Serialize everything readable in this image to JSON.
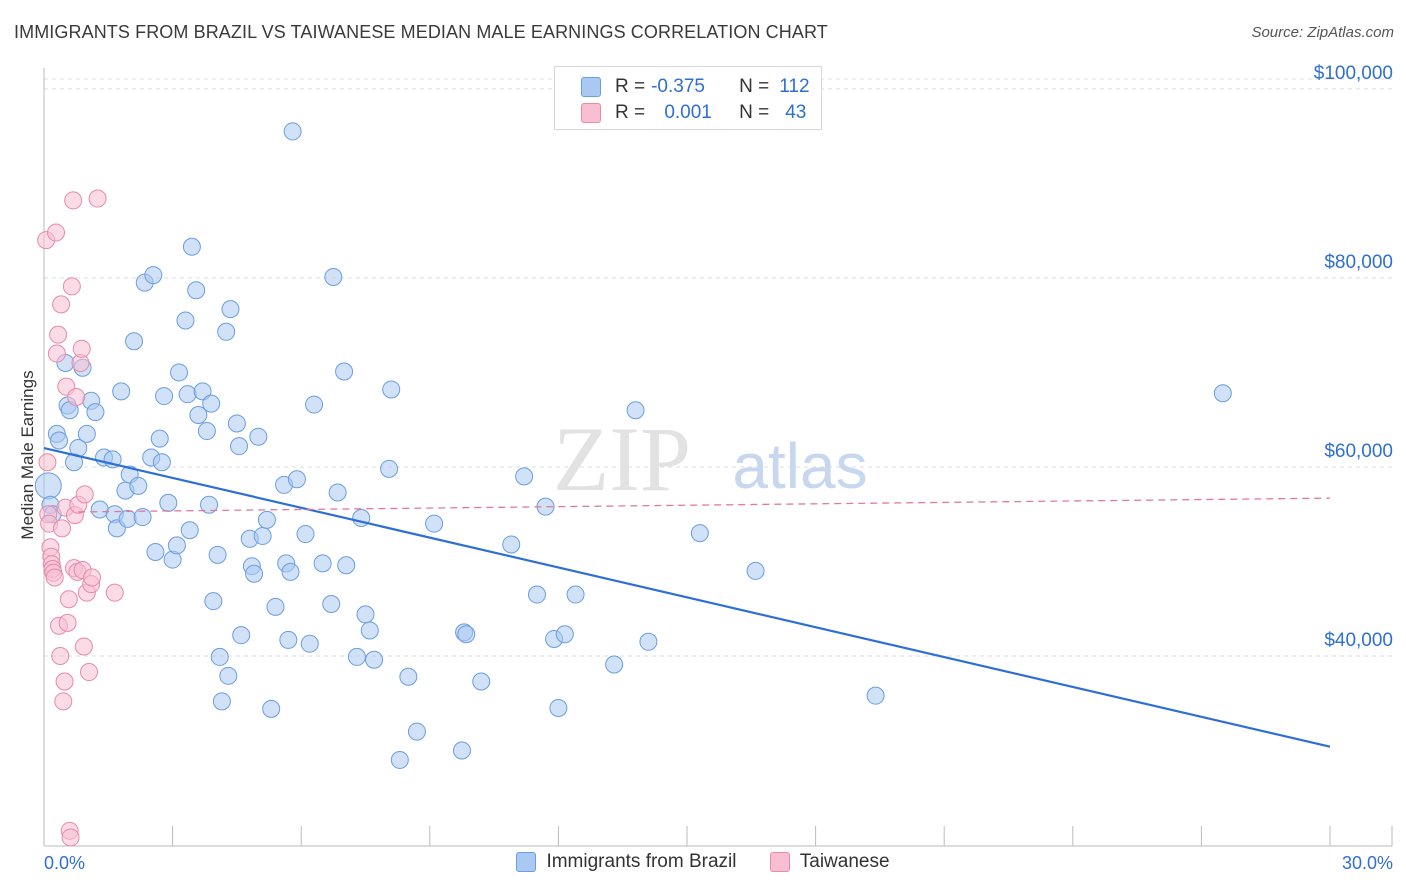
{
  "header": {
    "title": "IMMIGRANTS FROM BRAZIL VS TAIWANESE MEDIAN MALE EARNINGS CORRELATION CHART",
    "source": "Source: ZipAtlas.com"
  },
  "watermark": {
    "zip": "ZIP",
    "atlas": "atlas"
  },
  "stats": [
    {
      "r_label": "R =",
      "r_value": "-0.375",
      "n_label": "N =",
      "n_value": "112",
      "color": "#a9c9f2",
      "border": "#6a9ee0"
    },
    {
      "r_label": "R =",
      "r_value": "0.001",
      "n_label": "N =",
      "n_value": "43",
      "color": "#f7bfd1",
      "border": "#e88aa8"
    }
  ],
  "legend": [
    {
      "label": "Immigrants from Brazil",
      "color": "#a9c9f2",
      "border": "#6a9ee0"
    },
    {
      "label": "Taiwanese",
      "color": "#f7bfd1",
      "border": "#e88aa8"
    }
  ],
  "chart_data": {
    "type": "scatter",
    "title": "IMMIGRANTS FROM BRAZIL VS TAIWANESE MEDIAN MALE EARNINGS CORRELATION CHART",
    "xlabel": "",
    "ylabel": "Median Male Earnings",
    "xlim": [
      0,
      30
    ],
    "ylim": [
      20000,
      102000
    ],
    "x_tick_labels": [
      "0.0%",
      "30.0%"
    ],
    "y_ticks": [
      40000,
      60000,
      80000,
      100000
    ],
    "y_tick_labels": [
      "$40,000",
      "$60,000",
      "$80,000",
      "$100,000"
    ],
    "grid": true,
    "series": [
      {
        "name": "Immigrants from Brazil",
        "color": "#a9c9f2",
        "stroke": "#6a9ee0",
        "trend": {
          "x": [
            0,
            30
          ],
          "y": [
            62000,
            30400
          ],
          "color": "#2e6fd6",
          "dashed": false
        },
        "points": [
          [
            0.1,
            58000
          ],
          [
            0.15,
            56000
          ],
          [
            0.2,
            55000
          ],
          [
            0.3,
            63500
          ],
          [
            0.35,
            62800
          ],
          [
            0.5,
            71000
          ],
          [
            0.55,
            66500
          ],
          [
            0.6,
            66000
          ],
          [
            0.7,
            60500
          ],
          [
            0.8,
            62000
          ],
          [
            0.9,
            70500
          ],
          [
            1.0,
            63500
          ],
          [
            1.1,
            67000
          ],
          [
            1.2,
            65800
          ],
          [
            1.3,
            55500
          ],
          [
            1.4,
            61000
          ],
          [
            1.6,
            60800
          ],
          [
            1.65,
            55000
          ],
          [
            1.7,
            53500
          ],
          [
            1.8,
            68000
          ],
          [
            1.9,
            57500
          ],
          [
            1.95,
            54500
          ],
          [
            2.0,
            59200
          ],
          [
            2.1,
            73300
          ],
          [
            2.2,
            58000
          ],
          [
            2.3,
            54700
          ],
          [
            2.35,
            79500
          ],
          [
            2.5,
            61000
          ],
          [
            2.55,
            80300
          ],
          [
            2.6,
            51000
          ],
          [
            2.7,
            63000
          ],
          [
            2.75,
            60500
          ],
          [
            2.8,
            67500
          ],
          [
            2.9,
            56200
          ],
          [
            3.0,
            50200
          ],
          [
            3.1,
            51700
          ],
          [
            3.15,
            70000
          ],
          [
            3.3,
            75500
          ],
          [
            3.35,
            67700
          ],
          [
            3.4,
            53300
          ],
          [
            3.45,
            83300
          ],
          [
            3.55,
            78700
          ],
          [
            3.6,
            65500
          ],
          [
            3.7,
            68000
          ],
          [
            3.8,
            63800
          ],
          [
            3.85,
            56000
          ],
          [
            3.9,
            66700
          ],
          [
            3.95,
            45800
          ],
          [
            4.05,
            50700
          ],
          [
            4.1,
            39900
          ],
          [
            4.15,
            35200
          ],
          [
            4.25,
            74300
          ],
          [
            4.3,
            37900
          ],
          [
            4.35,
            76700
          ],
          [
            4.5,
            64600
          ],
          [
            4.55,
            62200
          ],
          [
            4.6,
            42200
          ],
          [
            4.8,
            52400
          ],
          [
            4.85,
            49500
          ],
          [
            4.9,
            48700
          ],
          [
            5.0,
            63200
          ],
          [
            5.1,
            52700
          ],
          [
            5.2,
            54400
          ],
          [
            5.3,
            34400
          ],
          [
            5.4,
            45200
          ],
          [
            5.6,
            58100
          ],
          [
            5.65,
            49800
          ],
          [
            5.7,
            41700
          ],
          [
            5.75,
            48900
          ],
          [
            5.8,
            95500
          ],
          [
            5.9,
            58700
          ],
          [
            6.1,
            52900
          ],
          [
            6.2,
            41300
          ],
          [
            6.3,
            66600
          ],
          [
            6.5,
            49800
          ],
          [
            6.7,
            45500
          ],
          [
            6.75,
            80100
          ],
          [
            6.85,
            57300
          ],
          [
            7.0,
            70100
          ],
          [
            7.05,
            49600
          ],
          [
            7.3,
            39900
          ],
          [
            7.4,
            54600
          ],
          [
            7.5,
            44400
          ],
          [
            7.6,
            42700
          ],
          [
            7.7,
            39600
          ],
          [
            8.1,
            68200
          ],
          [
            8.05,
            59800
          ],
          [
            8.3,
            29000
          ],
          [
            8.5,
            37800
          ],
          [
            8.7,
            32000
          ],
          [
            9.1,
            54000
          ],
          [
            9.75,
            30000
          ],
          [
            9.8,
            42500
          ],
          [
            9.85,
            42300
          ],
          [
            10.2,
            37300
          ],
          [
            10.9,
            51800
          ],
          [
            11.2,
            59000
          ],
          [
            11.5,
            46500
          ],
          [
            11.7,
            55800
          ],
          [
            11.9,
            41800
          ],
          [
            12.0,
            34500
          ],
          [
            12.15,
            42300
          ],
          [
            12.4,
            46500
          ],
          [
            13.3,
            39100
          ],
          [
            13.8,
            66000
          ],
          [
            14.1,
            41500
          ],
          [
            15.3,
            53000
          ],
          [
            16.6,
            49000
          ],
          [
            19.4,
            35800
          ],
          [
            27.5,
            67800
          ]
        ]
      },
      {
        "name": "Taiwanese",
        "color": "#f7bfd1",
        "stroke": "#e88aa8",
        "trend": {
          "x": [
            0,
            30
          ],
          "y": [
            55200,
            56700
          ],
          "color": "#e07a9d",
          "dashed": true
        },
        "points": [
          [
            0.05,
            84000
          ],
          [
            0.08,
            60500
          ],
          [
            0.1,
            55000
          ],
          [
            0.12,
            54000
          ],
          [
            0.15,
            51500
          ],
          [
            0.17,
            50500
          ],
          [
            0.18,
            49700
          ],
          [
            0.2,
            49200
          ],
          [
            0.22,
            48800
          ],
          [
            0.25,
            48300
          ],
          [
            0.28,
            84800
          ],
          [
            0.3,
            72000
          ],
          [
            0.33,
            74000
          ],
          [
            0.35,
            43200
          ],
          [
            0.38,
            40000
          ],
          [
            0.4,
            77200
          ],
          [
            0.42,
            53500
          ],
          [
            0.45,
            35200
          ],
          [
            0.48,
            37300
          ],
          [
            0.5,
            55700
          ],
          [
            0.52,
            68500
          ],
          [
            0.55,
            43500
          ],
          [
            0.58,
            46000
          ],
          [
            0.6,
            21500
          ],
          [
            0.62,
            20800
          ],
          [
            0.65,
            79100
          ],
          [
            0.68,
            88200
          ],
          [
            0.7,
            49300
          ],
          [
            0.72,
            54900
          ],
          [
            0.75,
            67400
          ],
          [
            0.78,
            48900
          ],
          [
            0.8,
            56000
          ],
          [
            0.85,
            71000
          ],
          [
            0.88,
            72500
          ],
          [
            0.9,
            49100
          ],
          [
            0.93,
            41000
          ],
          [
            0.95,
            57100
          ],
          [
            1.0,
            46700
          ],
          [
            1.05,
            38300
          ],
          [
            1.1,
            47600
          ],
          [
            1.12,
            48300
          ],
          [
            1.25,
            88400
          ],
          [
            1.65,
            46700
          ]
        ]
      }
    ]
  }
}
